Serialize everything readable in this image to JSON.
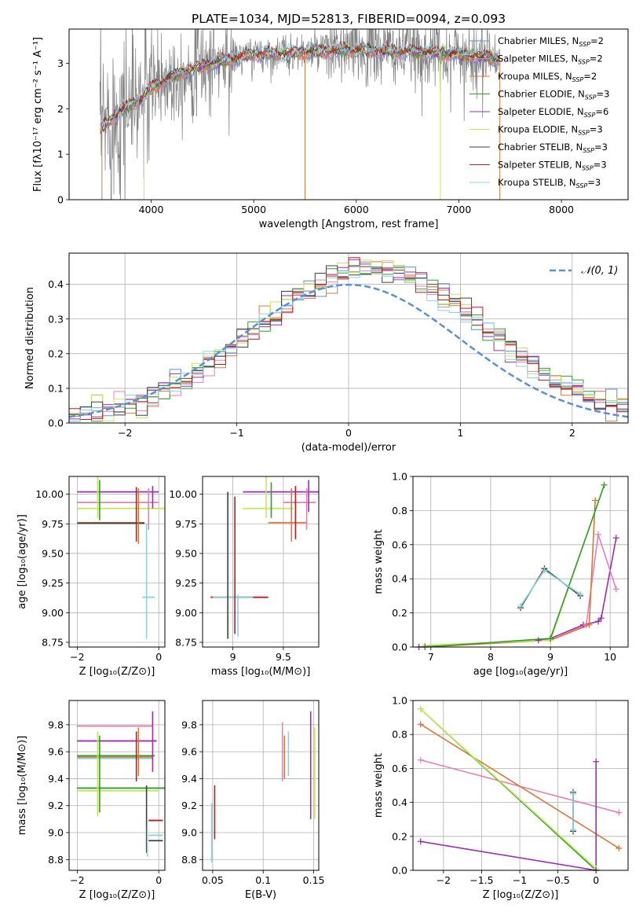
{
  "figure": {
    "title": "PLATE=1034, MJD=52813, FIBERID=0094, z=0.093"
  },
  "chart_data": [
    {
      "id": "spectrum",
      "type": "line",
      "xlabel": "wavelength [Angstrom, rest frame]",
      "ylabel": "Flux [fλ10⁻¹⁷ erg cm⁻² s⁻¹ A⁻¹]",
      "xlim": [
        3200,
        8650
      ],
      "ylim": [
        0,
        3.75
      ],
      "xticks": [
        4000,
        5000,
        6000,
        7000,
        8000
      ],
      "yticks": [
        0,
        1,
        2,
        3
      ],
      "grid": false,
      "legend_position": "right",
      "data_color": "#808080",
      "data_x_range": [
        3500,
        7400
      ],
      "series": [
        {
          "name": "Chabrier MILES, N",
          "sub": "SSP",
          "tail": "=2",
          "color": "#5b8fd6"
        },
        {
          "name": "Salpeter MILES, N",
          "sub": "SSP",
          "tail": "=2",
          "color": "#e77fb5"
        },
        {
          "name": "Kroupa MILES, N",
          "sub": "SSP",
          "tail": "=2",
          "color": "#d9783a"
        },
        {
          "name": "Chabrier ELODIE, N",
          "sub": "SSP",
          "tail": "=3",
          "color": "#2ca02c"
        },
        {
          "name": "Salpeter ELODIE, N",
          "sub": "SSP",
          "tail": "=6",
          "color": "#9b2eb5"
        },
        {
          "name": "Kroupa ELODIE, N",
          "sub": "SSP",
          "tail": "=3",
          "color": "#c5e85a"
        },
        {
          "name": "Chabrier STELIB, N",
          "sub": "SSP",
          "tail": "=3",
          "color": "#404040"
        },
        {
          "name": "Salpeter STELIB, N",
          "sub": "SSP",
          "tail": "=3",
          "color": "#c01b1b"
        },
        {
          "name": "Kroupa STELIB, N",
          "sub": "SSP",
          "tail": "=3",
          "color": "#86d4e0"
        }
      ],
      "model_knots": {
        "x": [
          3500,
          3600,
          3700,
          3800,
          3900,
          4000,
          4100,
          4300,
          4500,
          4800,
          5000,
          5300,
          5600,
          5900,
          6200,
          6500,
          6800,
          7000,
          7200,
          7400
        ],
        "y": [
          1.55,
          1.75,
          1.95,
          2.1,
          2.2,
          2.45,
          2.6,
          2.8,
          2.95,
          3.1,
          3.2,
          3.22,
          3.25,
          3.28,
          3.28,
          3.25,
          3.22,
          3.2,
          3.15,
          3.1
        ]
      }
    },
    {
      "id": "residual-histogram",
      "type": "line",
      "xlabel": "(data-model)/error",
      "ylabel": "Normed distribution",
      "xlim": [
        -2.5,
        2.5
      ],
      "ylim": [
        0,
        0.49
      ],
      "xticks": [
        -2,
        -1,
        0,
        1,
        2
      ],
      "yticks": [
        0.0,
        0.1,
        0.2,
        0.3,
        0.4
      ],
      "grid": true,
      "legend_position": "top-right",
      "legend_label": "𝒩(0, 1)",
      "curve_color": "#5b8fd6",
      "bin_width": 0.1
    },
    {
      "id": "age-vs-z",
      "type": "scatter",
      "xlabel": "Z [log₁₀(Z/Z⊙)]",
      "ylabel": "age  [log₁₀(age/yr)]",
      "xlim": [
        -2.2,
        0.15
      ],
      "ylim": [
        8.71,
        10.15
      ],
      "xticks": [
        -2,
        0
      ],
      "yticks": [
        8.75,
        9.0,
        9.25,
        9.5,
        9.75,
        10.0
      ],
      "grid": true,
      "hbars": [
        {
          "y": 10.02,
          "x0": -2.0,
          "x1": 0.0,
          "color": "#9b2eb5"
        },
        {
          "y": 9.93,
          "x0": -2.0,
          "x1": 0.0,
          "color": "#e77fb5"
        },
        {
          "y": 9.88,
          "x0": -2.0,
          "x1": 0.25,
          "color": "#c5e85a"
        },
        {
          "y": 9.76,
          "x0": -2.0,
          "x1": -0.35,
          "color": "#d9783a"
        },
        {
          "y": 9.755,
          "x0": -2.0,
          "x1": -0.35,
          "color": "#404040"
        },
        {
          "y": 9.13,
          "x0": -0.4,
          "x1": -0.1,
          "color": "#86d4e0"
        }
      ],
      "vbars": [
        {
          "x": -1.5,
          "y0": 9.8,
          "y1": 10.15,
          "color": "#c5e85a"
        },
        {
          "x": -1.45,
          "y0": 9.78,
          "y1": 10.12,
          "color": "#2ca02c"
        },
        {
          "x": -0.55,
          "y0": 9.6,
          "y1": 10.06,
          "color": "#c01b1b"
        },
        {
          "x": -0.5,
          "y0": 9.58,
          "y1": 10.05,
          "color": "#d9783a"
        },
        {
          "x": -0.15,
          "y0": 9.88,
          "y1": 10.07,
          "color": "#9b2eb5"
        },
        {
          "x": -0.3,
          "y0": 8.78,
          "y1": 9.75,
          "color": "#86d4e0"
        },
        {
          "x": -0.25,
          "y0": 9.7,
          "y1": 10.05,
          "color": "#e77fb5"
        }
      ]
    },
    {
      "id": "age-vs-mass",
      "type": "scatter",
      "xlabel": "mass [log₁₀(M/M⊙)]",
      "ylabel": "",
      "xlim": [
        8.7,
        9.85
      ],
      "ylim": [
        8.71,
        10.15
      ],
      "xticks": [
        9.0,
        9.5
      ],
      "yticks": [
        8.75,
        9.0,
        9.25,
        9.5,
        9.75,
        10.0
      ],
      "grid": true,
      "hbars": [
        {
          "y": 10.02,
          "x0": 9.1,
          "x1": 9.92,
          "color": "#9b2eb5"
        },
        {
          "y": 9.93,
          "x0": 9.5,
          "x1": 9.82,
          "color": "#e77fb5"
        },
        {
          "y": 9.88,
          "x0": 9.1,
          "x1": 9.6,
          "color": "#c5e85a"
        },
        {
          "y": 9.76,
          "x0": 9.35,
          "x1": 9.73,
          "color": "#d9783a"
        },
        {
          "y": 9.13,
          "x0": 8.78,
          "x1": 9.35,
          "color": "#c01b1b"
        },
        {
          "y": 9.13,
          "x0": 8.8,
          "x1": 9.2,
          "color": "#86d4e0"
        }
      ],
      "vbars": [
        {
          "x": 8.95,
          "y0": 8.78,
          "y1": 10.02,
          "color": "#404040"
        },
        {
          "x": 9.02,
          "y0": 8.82,
          "y1": 9.98,
          "color": "#c01b1b"
        },
        {
          "x": 9.05,
          "y0": 8.8,
          "y1": 9.15,
          "color": "#86d4e0"
        },
        {
          "x": 9.33,
          "y0": 9.8,
          "y1": 10.15,
          "color": "#c5e85a"
        },
        {
          "x": 9.38,
          "y0": 9.8,
          "y1": 10.1,
          "color": "#2ca02c"
        },
        {
          "x": 9.58,
          "y0": 9.6,
          "y1": 10.05,
          "color": "#d9783a"
        },
        {
          "x": 9.62,
          "y0": 9.62,
          "y1": 10.07,
          "color": "#c01b1b"
        },
        {
          "x": 9.73,
          "y0": 9.7,
          "y1": 10.05,
          "color": "#e77fb5"
        },
        {
          "x": 9.75,
          "y0": 9.85,
          "y1": 10.12,
          "color": "#9b2eb5"
        }
      ]
    },
    {
      "id": "mass-weight-vs-age",
      "type": "line",
      "xlabel": "age  [log₁₀(age/yr)]",
      "ylabel": "mass weight",
      "xlim": [
        6.7,
        10.3
      ],
      "ylim": [
        0,
        1.0
      ],
      "xticks": [
        7,
        8,
        9,
        10
      ],
      "yticks": [
        0.0,
        0.2,
        0.4,
        0.6,
        0.8,
        1.0
      ],
      "grid": true,
      "series": [
        {
          "x": [
            6.8,
            8.8,
            9.0,
            9.55,
            9.8,
            9.85,
            10.1
          ],
          "y": [
            0.0,
            0.04,
            0.05,
            0.13,
            0.15,
            0.17,
            0.64
          ],
          "color": "#9b2eb5"
        },
        {
          "x": [
            9.0,
            9.6,
            9.8,
            10.1
          ],
          "y": [
            0.04,
            0.13,
            0.66,
            0.34
          ],
          "color": "#e77fb5"
        },
        {
          "x": [
            6.9,
            9.0,
            9.65,
            9.75
          ],
          "y": [
            0.0,
            0.04,
            0.13,
            0.86
          ],
          "color": "#d9783a"
        },
        {
          "x": [
            6.9,
            9.0,
            9.9
          ],
          "y": [
            0.01,
            0.04,
            0.95
          ],
          "color": "#c5e85a"
        },
        {
          "x": [
            6.9,
            9.0,
            9.9
          ],
          "y": [
            0.0,
            0.05,
            0.95
          ],
          "color": "#2ca02c"
        },
        {
          "x": [
            8.5,
            8.9,
            9.5
          ],
          "y": [
            0.23,
            0.46,
            0.3
          ],
          "color": "#404040"
        },
        {
          "x": [
            8.5,
            8.9,
            9.5
          ],
          "y": [
            0.24,
            0.45,
            0.31
          ],
          "color": "#86d4e0"
        }
      ]
    },
    {
      "id": "mass-vs-z",
      "type": "scatter",
      "xlabel": "Z [log₁₀(Z/Z⊙)]",
      "ylabel": "mass [log₁₀(M/M⊙)]",
      "xlim": [
        -2.2,
        0.15
      ],
      "ylim": [
        8.72,
        9.98
      ],
      "xticks": [
        -2,
        0
      ],
      "yticks": [
        8.8,
        9.0,
        9.2,
        9.4,
        9.6,
        9.8
      ],
      "grid": true,
      "hbars": [
        {
          "y": 9.79,
          "x0": -2.0,
          "x1": -0.15,
          "color": "#e77fb5"
        },
        {
          "y": 9.68,
          "x0": -2.0,
          "x1": -0.05,
          "color": "#9b2eb5"
        },
        {
          "y": 9.57,
          "x0": -2.0,
          "x1": -0.1,
          "color": "#2ca02c"
        },
        {
          "y": 9.56,
          "x0": -2.0,
          "x1": -0.15,
          "color": "#d9783a"
        },
        {
          "y": 9.55,
          "x0": -2.0,
          "x1": -0.15,
          "color": "#86d4e0"
        },
        {
          "y": 9.33,
          "x0": -2.0,
          "x1": 0.25,
          "color": "#2ca02c"
        },
        {
          "y": 9.31,
          "x0": -2.0,
          "x1": 0.0,
          "color": "#c5e85a"
        },
        {
          "y": 9.09,
          "x0": -0.25,
          "x1": 0.1,
          "color": "#c01b1b"
        },
        {
          "y": 8.98,
          "x0": -0.25,
          "x1": 0.1,
          "color": "#86d4e0"
        },
        {
          "y": 8.94,
          "x0": -0.25,
          "x1": 0.1,
          "color": "#404040"
        }
      ],
      "vbars": [
        {
          "x": -1.5,
          "y0": 9.12,
          "y1": 9.75,
          "color": "#c5e85a"
        },
        {
          "x": -1.45,
          "y0": 9.15,
          "y1": 9.72,
          "color": "#2ca02c"
        },
        {
          "x": -0.55,
          "y0": 9.38,
          "y1": 9.75,
          "color": "#c01b1b"
        },
        {
          "x": -0.5,
          "y0": 9.42,
          "y1": 9.78,
          "color": "#d9783a"
        },
        {
          "x": -0.3,
          "y0": 8.85,
          "y1": 9.35,
          "color": "#404040"
        },
        {
          "x": -0.28,
          "y0": 8.82,
          "y1": 9.05,
          "color": "#86d4e0"
        },
        {
          "x": -0.15,
          "y0": 9.45,
          "y1": 9.9,
          "color": "#9b2eb5"
        }
      ]
    },
    {
      "id": "mass-vs-ebv",
      "type": "scatter",
      "xlabel": "E(B-V)",
      "ylabel": "",
      "xlim": [
        0.04,
        0.155
      ],
      "ylim": [
        8.72,
        9.98
      ],
      "xticks": [
        0.05,
        0.1,
        0.15
      ],
      "yticks": [
        8.8,
        9.0,
        9.2,
        9.4,
        9.6,
        9.8
      ],
      "grid": true,
      "hbars": [],
      "vbars": [
        {
          "x": 0.049,
          "y0": 8.78,
          "y1": 9.22,
          "color": "#86d4e0"
        },
        {
          "x": 0.052,
          "y0": 8.95,
          "y1": 9.35,
          "color": "#c01b1b"
        },
        {
          "x": 0.119,
          "y0": 9.38,
          "y1": 9.82,
          "color": "#e77fb5"
        },
        {
          "x": 0.121,
          "y0": 9.4,
          "y1": 9.72,
          "color": "#d9783a"
        },
        {
          "x": 0.125,
          "y0": 9.42,
          "y1": 9.75,
          "color": "#86d4e0"
        },
        {
          "x": 0.147,
          "y0": 9.1,
          "y1": 9.9,
          "color": "#9b2eb5"
        },
        {
          "x": 0.151,
          "y0": 9.1,
          "y1": 9.78,
          "color": "#c5e85a"
        }
      ]
    },
    {
      "id": "mass-weight-vs-z",
      "type": "line",
      "xlabel": "Z [log₁₀(Z/Z⊙)]",
      "ylabel": "mass weight",
      "xlim": [
        -2.4,
        0.42
      ],
      "ylim": [
        0,
        1.0
      ],
      "xticks": [
        -2.0,
        -1.5,
        -1.0,
        -0.5,
        0.0
      ],
      "yticks": [
        0.0,
        0.2,
        0.4,
        0.6,
        0.8,
        1.0
      ],
      "grid": true,
      "series": [
        {
          "x": [
            -2.3,
            0.0
          ],
          "y": [
            0.17,
            0.0
          ],
          "color": "#9b2eb5"
        },
        {
          "x": [
            -2.3,
            0.3
          ],
          "y": [
            0.65,
            0.34
          ],
          "color": "#e77fb5"
        },
        {
          "x": [
            -2.3,
            0.3
          ],
          "y": [
            0.86,
            0.13
          ],
          "color": "#d9783a"
        },
        {
          "x": [
            -2.3,
            0.0
          ],
          "y": [
            0.95,
            0.0
          ],
          "color": "#2ca02c"
        },
        {
          "x": [
            -2.3,
            0.0
          ],
          "y": [
            0.95,
            0.01
          ],
          "color": "#c5e85a"
        },
        {
          "x": [
            -0.3,
            -0.3
          ],
          "y": [
            0.23,
            0.46
          ],
          "color": "#404040"
        },
        {
          "x": [
            -0.3,
            -0.3
          ],
          "y": [
            0.24,
            0.45
          ],
          "color": "#86d4e0"
        },
        {
          "x": [
            0.0,
            0.0
          ],
          "y": [
            0.0,
            0.64
          ],
          "color": "#9b2eb5"
        }
      ]
    }
  ]
}
